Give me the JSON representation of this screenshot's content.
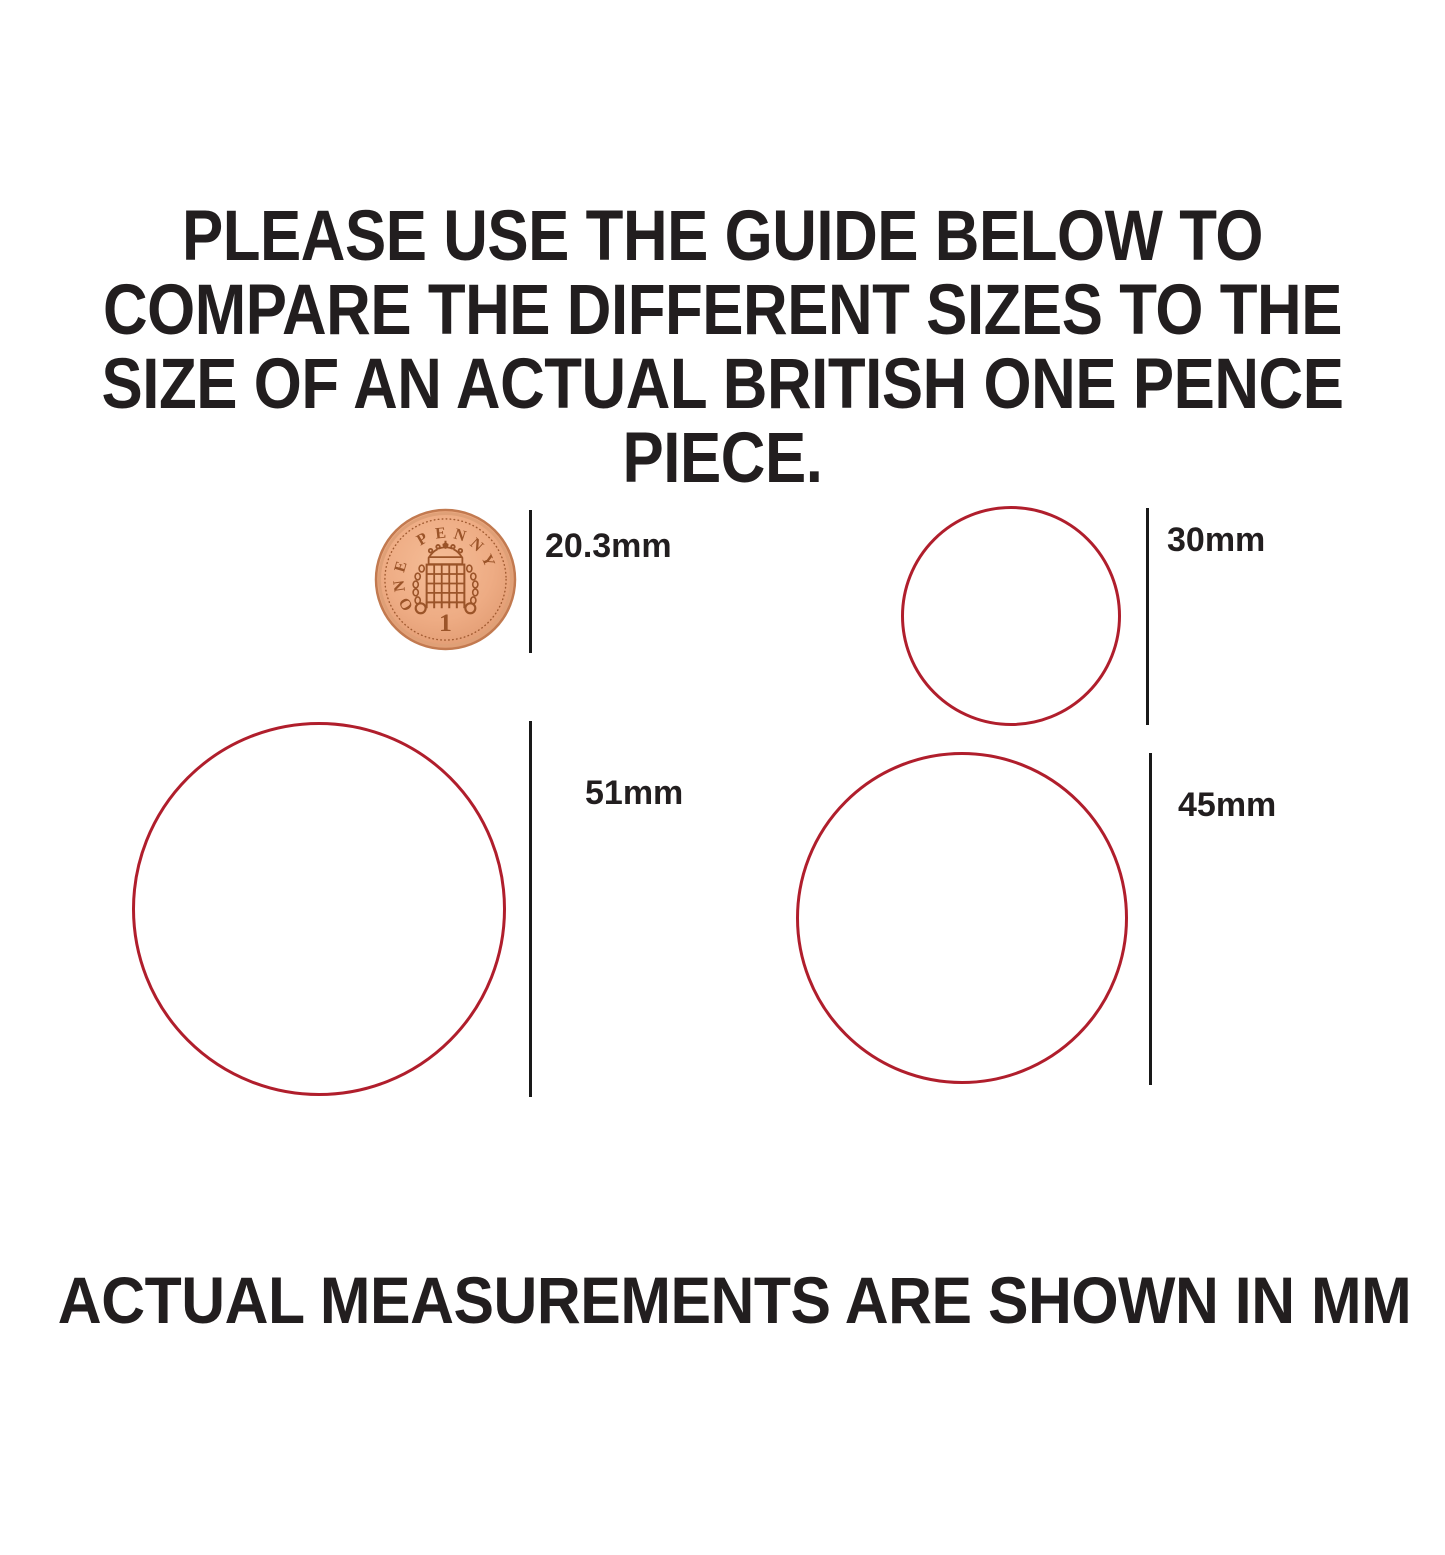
{
  "title": {
    "lines": [
      "PLEASE USE THE GUIDE BELOW TO",
      "COMPARE THE DIFFERENT SIZES TO THE",
      "SIZE OF AN ACTUAL BRITISH ONE PENCE",
      "PIECE."
    ]
  },
  "coin": {
    "legend": "ONE PENNY",
    "denomination": "1",
    "label": "20.3mm"
  },
  "circles": {
    "c30": {
      "label": "30mm"
    },
    "c51": {
      "label": "51mm"
    },
    "c45": {
      "label": "45mm"
    }
  },
  "footer": {
    "text": "ACTUAL MEASUREMENTS ARE SHOWN IN MM"
  },
  "colors": {
    "circle_stroke": "#b01e2c",
    "measure_line": "#191919",
    "text": "#221e1f",
    "coin_body": "#eeac84",
    "coin_rim": "#c27a50",
    "coin_detail": "#9b5429"
  }
}
